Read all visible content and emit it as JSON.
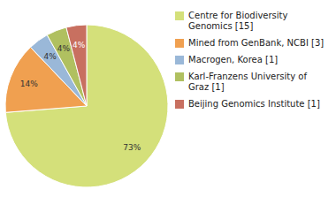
{
  "chart_data": {
    "type": "pie",
    "categories": [
      "Centre for Biodiversity\nGenomics [15]",
      "Mined from GenBank, NCBI [3]",
      "Macrogen, Korea [1]",
      "Karl-Franzens University of\nGraz [1]",
      "Beijing Genomics Institute [1]"
    ],
    "values": [
      73,
      14,
      4,
      4,
      4
    ],
    "value_labels": [
      "73%",
      "14%",
      "4%",
      "4%",
      "4%"
    ],
    "data_labels": true,
    "colors": [
      "#d4e07a",
      "#f0a050",
      "#9ab8d8",
      "#b0c060",
      "#c87060"
    ],
    "legend": "upper right"
  }
}
